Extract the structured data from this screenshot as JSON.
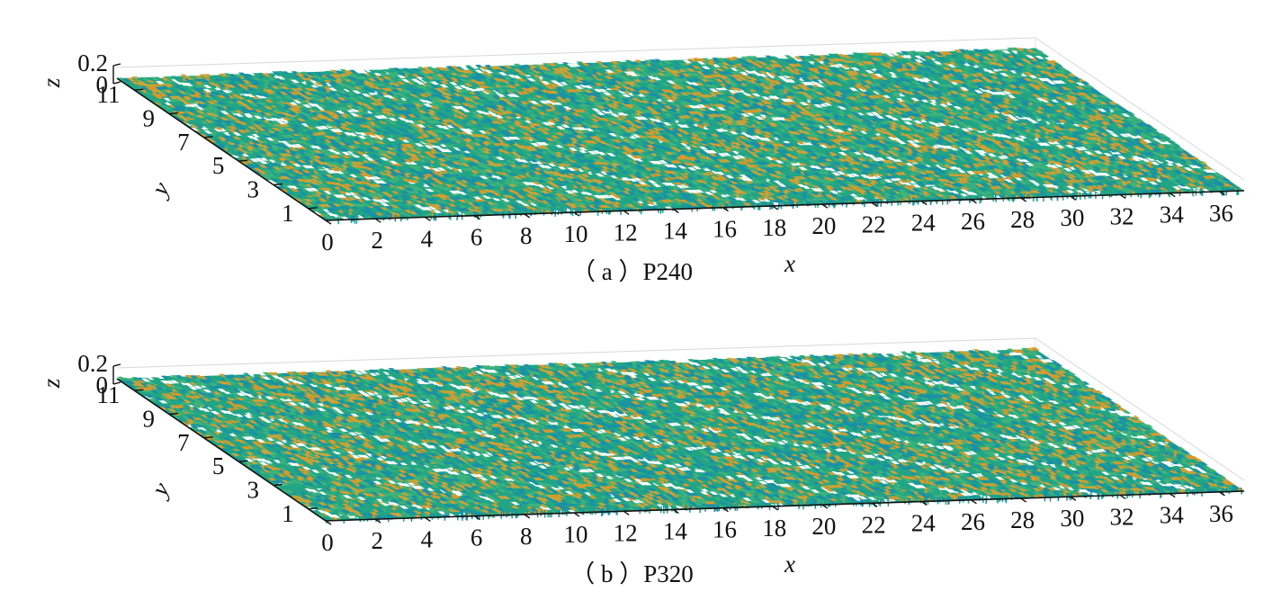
{
  "chart_data": [
    {
      "type": "surface",
      "caption": "（ a ）P240",
      "xlabel": "x",
      "ylabel": "y",
      "zlabel": "z",
      "xlim": [
        0,
        37
      ],
      "ylim": [
        0,
        12
      ],
      "zlim": [
        0,
        0.2
      ],
      "x_ticks": [
        0,
        2,
        4,
        6,
        8,
        10,
        12,
        14,
        16,
        18,
        20,
        22,
        24,
        26,
        28,
        30,
        32,
        34,
        36
      ],
      "y_ticks": [
        1,
        3,
        5,
        7,
        9,
        11
      ],
      "z_ticks": [
        "0",
        "0.2"
      ],
      "colormap": [
        "#1a8fa8",
        "#22a585",
        "#3fb37a",
        "#c8a43a",
        "#d99a2b"
      ],
      "surface_band_orientation": "diagonal",
      "grid": true
    },
    {
      "type": "surface",
      "caption": "（ b ）P320",
      "xlabel": "x",
      "ylabel": "y",
      "zlabel": "z",
      "xlim": [
        0,
        37
      ],
      "ylim": [
        0,
        12
      ],
      "zlim": [
        0,
        0.2
      ],
      "x_ticks": [
        0,
        2,
        4,
        6,
        8,
        10,
        12,
        14,
        16,
        18,
        20,
        22,
        24,
        26,
        28,
        30,
        32,
        34,
        36
      ],
      "y_ticks": [
        1,
        3,
        5,
        7,
        9,
        11
      ],
      "z_ticks": [
        "0",
        "0.2"
      ],
      "colormap": [
        "#1a8fa8",
        "#22a585",
        "#3fb37a",
        "#c8a43a",
        "#d99a2b"
      ],
      "surface_band_orientation": "diagonal",
      "grid": true
    }
  ]
}
